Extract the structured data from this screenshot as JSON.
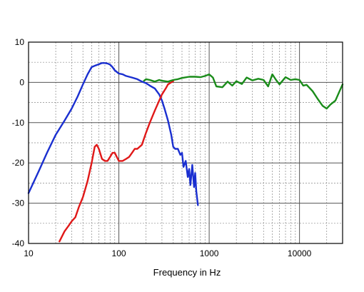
{
  "chart_data": {
    "type": "line",
    "title": "",
    "xlabel": "Frequency in Hz",
    "ylabel": "",
    "x_scale": "log",
    "xlim": [
      10,
      30000
    ],
    "ylim": [
      -40,
      10
    ],
    "grid": true,
    "x_ticks": [
      10,
      100,
      1000,
      10000
    ],
    "x_tick_labels": [
      "10",
      "100",
      "1000",
      "10000"
    ],
    "y_ticks": [
      10,
      0,
      -10,
      -20,
      -30,
      -40
    ],
    "y_tick_labels": [
      "10",
      "0",
      "-10",
      "-20",
      "-30",
      "-40"
    ],
    "series": [
      {
        "color": "#1a2fd0",
        "x": [
          10,
          13,
          16,
          20,
          25,
          30,
          35,
          40,
          45,
          50,
          55,
          60,
          65,
          70,
          75,
          80,
          85,
          90,
          100,
          110,
          120,
          140,
          160,
          180,
          200,
          220,
          250,
          280,
          300,
          320,
          350,
          380,
          400,
          420,
          450,
          480,
          500,
          520,
          550,
          580,
          600,
          620,
          650,
          680,
          700,
          720,
          750
        ],
        "y": [
          -27.5,
          -22,
          -17.5,
          -13,
          -9.5,
          -6.5,
          -3.5,
          -0.5,
          2.0,
          3.8,
          4.2,
          4.5,
          4.8,
          4.8,
          4.7,
          4.4,
          3.8,
          3.0,
          2.2,
          2.0,
          1.6,
          1.2,
          0.8,
          0.2,
          -0.2,
          -0.8,
          -1.5,
          -3.0,
          -4.5,
          -6.5,
          -9.5,
          -13.0,
          -16.0,
          -16.5,
          -16.5,
          -18.0,
          -17.5,
          -21.0,
          -19.5,
          -23.5,
          -21.5,
          -25.5,
          -20.5,
          -26.0,
          -22.5,
          -27.0,
          -30.5
        ]
      },
      {
        "color": "#e01818",
        "x": [
          22,
          25,
          28,
          30,
          33,
          36,
          40,
          45,
          50,
          54,
          57,
          60,
          65,
          70,
          75,
          80,
          85,
          90,
          100,
          110,
          120,
          130,
          140,
          150,
          160,
          180,
          200,
          220,
          250,
          280,
          300,
          330,
          350,
          380,
          400
        ],
        "y": [
          -39.5,
          -37,
          -35.5,
          -34.5,
          -33.5,
          -31,
          -28.5,
          -24.5,
          -20,
          -16,
          -15.5,
          -16.5,
          -19,
          -19.5,
          -19.5,
          -18.5,
          -17.5,
          -17.5,
          -19.5,
          -19.5,
          -19,
          -18.5,
          -17.5,
          -16.5,
          -16.5,
          -15.5,
          -12.5,
          -10,
          -7,
          -4.5,
          -3,
          -1.5,
          -0.5,
          0,
          0.3
        ]
      },
      {
        "color": "#1a8c1a",
        "x": [
          190,
          200,
          220,
          250,
          280,
          300,
          350,
          400,
          450,
          500,
          600,
          700,
          800,
          900,
          1000,
          1100,
          1200,
          1400,
          1600,
          1800,
          2000,
          2300,
          2600,
          3000,
          3500,
          4000,
          4500,
          5000,
          5500,
          6000,
          7000,
          8000,
          9000,
          10000,
          11000,
          12000,
          14000,
          16000,
          18000,
          20000,
          22000,
          25000,
          28000,
          30000
        ],
        "y": [
          0.4,
          0.8,
          0.6,
          0.2,
          0.6,
          0.4,
          0.2,
          0.6,
          0.8,
          1.1,
          1.4,
          1.4,
          1.3,
          1.6,
          2.0,
          1.2,
          -1.0,
          -1.2,
          0.2,
          -0.8,
          0.3,
          -0.4,
          1.2,
          0.5,
          0.9,
          0.6,
          -1.0,
          2.0,
          0.6,
          -0.5,
          1.3,
          0.6,
          0.8,
          0.6,
          -0.8,
          -0.6,
          -2.2,
          -4.2,
          -5.8,
          -6.5,
          -5.5,
          -4.5,
          -2.0,
          -0.5
        ]
      }
    ]
  }
}
